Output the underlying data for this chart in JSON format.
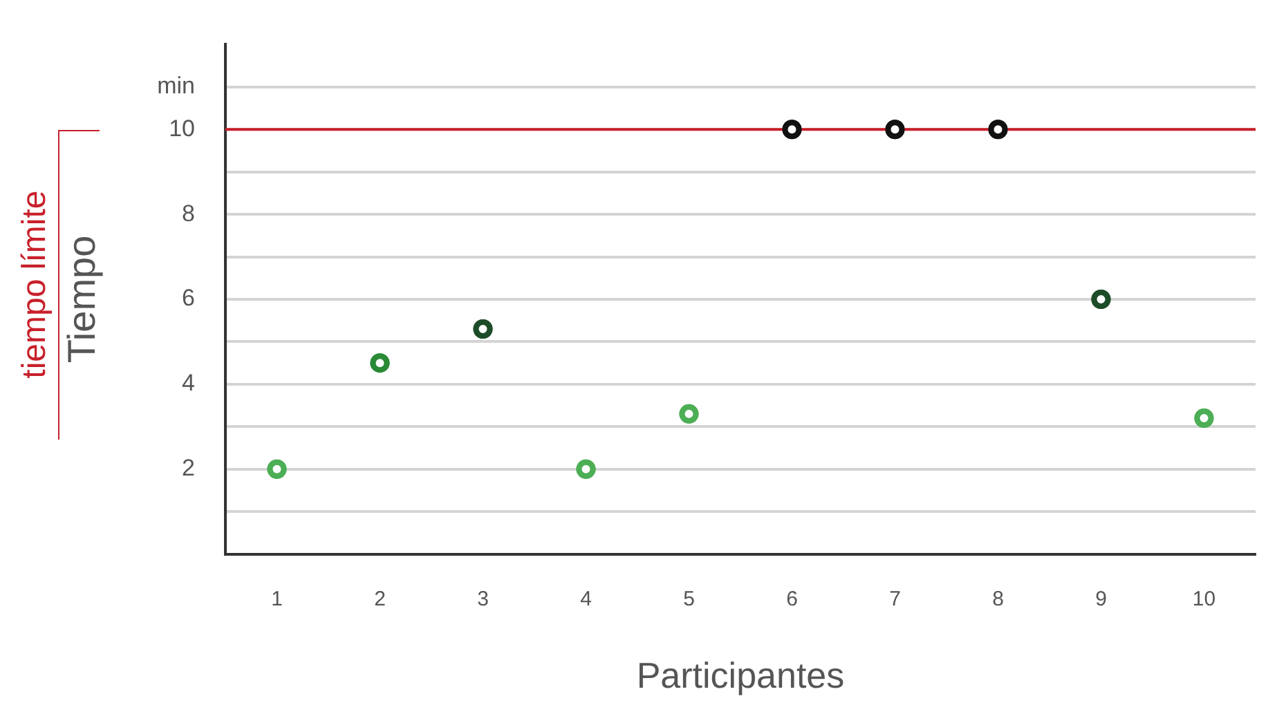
{
  "chart_data": {
    "type": "scatter",
    "xlabel": "Participantes",
    "ylabel": "Tiempo",
    "categories": [
      "1",
      "2",
      "3",
      "4",
      "5",
      "6",
      "7",
      "8",
      "9",
      "10"
    ],
    "values": [
      2.0,
      4.5,
      5.3,
      2.0,
      3.3,
      10,
      10,
      10,
      6,
      3.2
    ],
    "colors": [
      "#4cae55",
      "#2a8a36",
      "#1d4d28",
      "#4cae55",
      "#4cae55",
      "#111111",
      "#111111",
      "#111111",
      "#1d4d28",
      "#4cae55"
    ],
    "ylim": [
      0,
      12
    ],
    "yticks": [
      {
        "value": 1,
        "label": null
      },
      2,
      {
        "value": 3,
        "label": null
      },
      4,
      {
        "value": 5,
        "label": null
      },
      6,
      {
        "value": 7,
        "label": null
      },
      8,
      {
        "value": 9,
        "label": null
      },
      10,
      {
        "value": 11,
        "label": "min"
      }
    ],
    "grid": "y",
    "legend": false,
    "marker": "circle",
    "ref_lines": [
      {
        "axis": "y",
        "value": 10,
        "label": "tiempo límite",
        "color": "#c8202a"
      }
    ]
  }
}
